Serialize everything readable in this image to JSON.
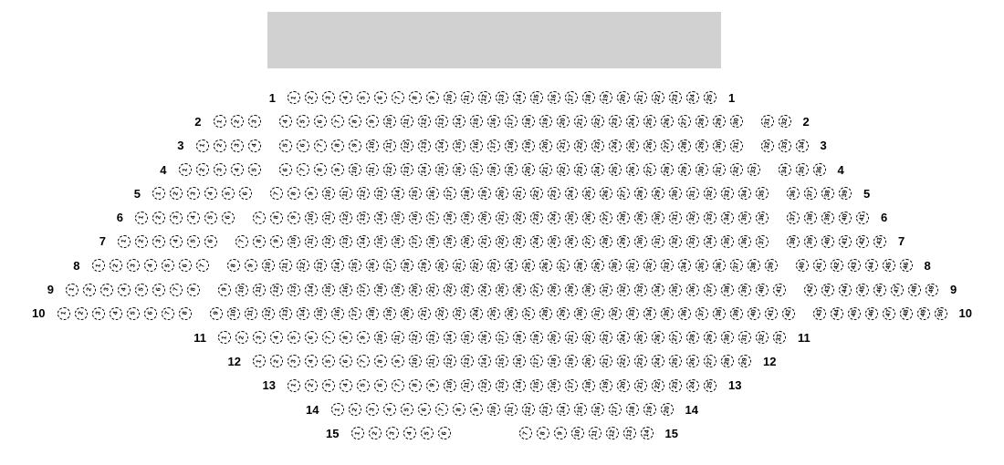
{
  "stage": {
    "color": "#d1d1d1"
  },
  "seat_style": {
    "fill": "#ffffff",
    "border_color": "#000000",
    "number_color": "#000000"
  },
  "seat_map": {
    "rows": [
      {
        "label": "1",
        "aisle": "normal",
        "blocks": [
          [
            1,
            25
          ]
        ]
      },
      {
        "label": "2",
        "aisle": "normal",
        "blocks": [
          [
            1,
            3
          ],
          [
            4,
            30
          ],
          [
            31,
            32
          ]
        ]
      },
      {
        "label": "3",
        "aisle": "normal",
        "blocks": [
          [
            1,
            4
          ],
          [
            5,
            31
          ],
          [
            32,
            34
          ]
        ]
      },
      {
        "label": "4",
        "aisle": "normal",
        "blocks": [
          [
            1,
            5
          ],
          [
            6,
            33
          ],
          [
            34,
            36
          ]
        ]
      },
      {
        "label": "5",
        "aisle": "normal",
        "blocks": [
          [
            1,
            6
          ],
          [
            7,
            35
          ],
          [
            36,
            39
          ]
        ]
      },
      {
        "label": "6",
        "aisle": "normal",
        "blocks": [
          [
            1,
            6
          ],
          [
            7,
            36
          ],
          [
            37,
            41
          ]
        ]
      },
      {
        "label": "7",
        "aisle": "normal",
        "blocks": [
          [
            1,
            6
          ],
          [
            7,
            37
          ],
          [
            38,
            43
          ]
        ]
      },
      {
        "label": "8",
        "aisle": "normal",
        "blocks": [
          [
            1,
            7
          ],
          [
            8,
            39
          ],
          [
            40,
            46
          ]
        ]
      },
      {
        "label": "9",
        "aisle": "normal",
        "blocks": [
          [
            1,
            8
          ],
          [
            9,
            41
          ],
          [
            42,
            49
          ]
        ]
      },
      {
        "label": "10",
        "aisle": "normal",
        "blocks": [
          [
            1,
            8
          ],
          [
            9,
            42
          ],
          [
            43,
            50
          ]
        ]
      },
      {
        "label": "11",
        "aisle": "normal",
        "blocks": [
          [
            1,
            33
          ]
        ]
      },
      {
        "label": "12",
        "aisle": "normal",
        "blocks": [
          [
            1,
            29
          ]
        ]
      },
      {
        "label": "13",
        "aisle": "normal",
        "blocks": [
          [
            1,
            25
          ]
        ]
      },
      {
        "label": "14",
        "aisle": "normal",
        "blocks": [
          [
            1,
            20
          ]
        ]
      },
      {
        "label": "15",
        "aisle": "wide",
        "blocks": [
          [
            1,
            6
          ],
          [
            7,
            14
          ]
        ]
      }
    ]
  }
}
